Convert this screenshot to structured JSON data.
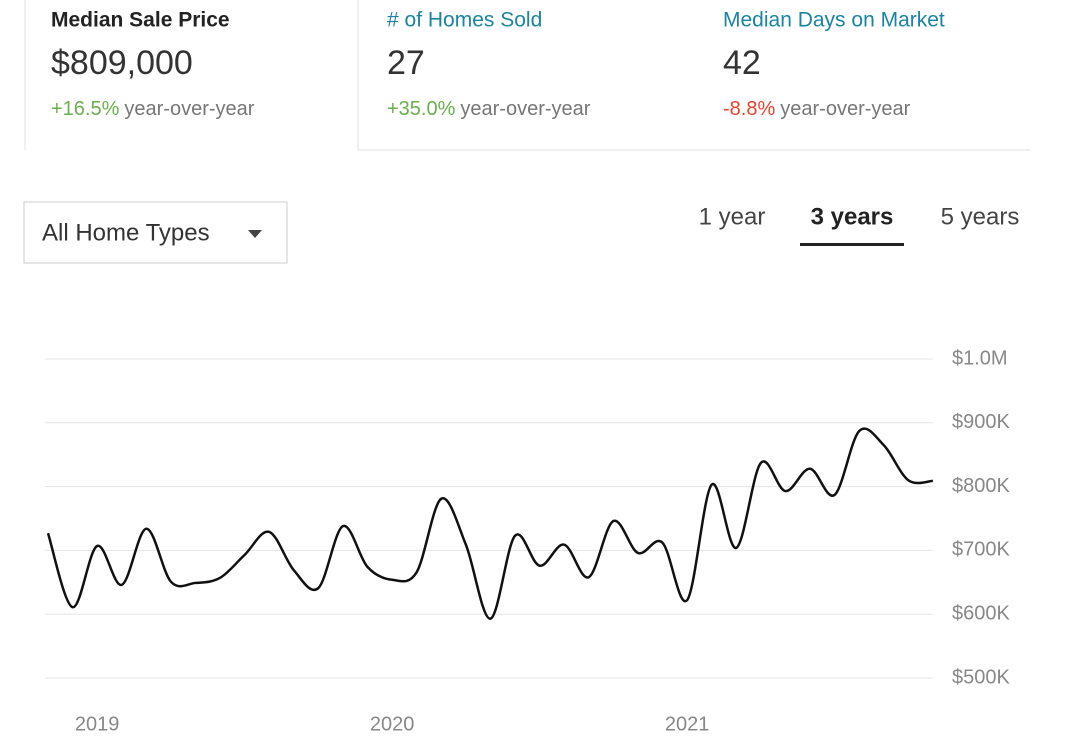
{
  "stats": [
    {
      "label": "Median Sale Price",
      "label_color": "#222222",
      "label_bold": true,
      "value": "$809,000",
      "change": "+16.5%",
      "change_color": "#6ab04c",
      "suffix": "year-over-year"
    },
    {
      "label": "# of Homes Sold",
      "label_color": "#1b84a3",
      "label_bold": false,
      "value": "27",
      "change": "+35.0%",
      "change_color": "#6ab04c",
      "suffix": "year-over-year"
    },
    {
      "label": "Median Days on Market",
      "label_color": "#1b84a3",
      "label_bold": false,
      "value": "42",
      "change": "-8.8%",
      "change_color": "#e8432e",
      "suffix": "year-over-year"
    }
  ],
  "filter": {
    "label": "All Home Types"
  },
  "tabs": {
    "items": [
      "1 year",
      "3 years",
      "5 years"
    ],
    "selected": 1
  },
  "chart_data": {
    "type": "line",
    "categories": [
      null,
      null,
      "2019",
      null,
      null,
      null,
      null,
      null,
      null,
      null,
      null,
      null,
      null,
      null,
      "2020",
      null,
      null,
      null,
      null,
      null,
      null,
      null,
      null,
      null,
      null,
      null,
      "2021",
      null,
      null,
      null,
      null,
      null,
      null,
      null,
      null,
      null,
      null
    ],
    "series": [
      {
        "name": "Median Sale Price",
        "color": "#111111",
        "values": [
          727000,
          611000,
          707000,
          646000,
          734000,
          651000,
          649000,
          657000,
          693000,
          729000,
          669000,
          641000,
          738000,
          674000,
          654000,
          666000,
          781000,
          709000,
          593000,
          723000,
          676000,
          709000,
          658000,
          746000,
          696000,
          712000,
          622000,
          803000,
          704000,
          837000,
          793000,
          828000,
          787000,
          887000,
          865000,
          810000,
          809000
        ]
      }
    ],
    "ylim": [
      500000,
      1000000
    ],
    "yticks": [
      {
        "value": 500000,
        "label": "$500K"
      },
      {
        "value": 600000,
        "label": "$600K"
      },
      {
        "value": 700000,
        "label": "$700K"
      },
      {
        "value": 800000,
        "label": "$800K"
      },
      {
        "value": 900000,
        "label": "$900K"
      },
      {
        "value": 1000000,
        "label": "$1.0M"
      }
    ],
    "grid": true
  }
}
